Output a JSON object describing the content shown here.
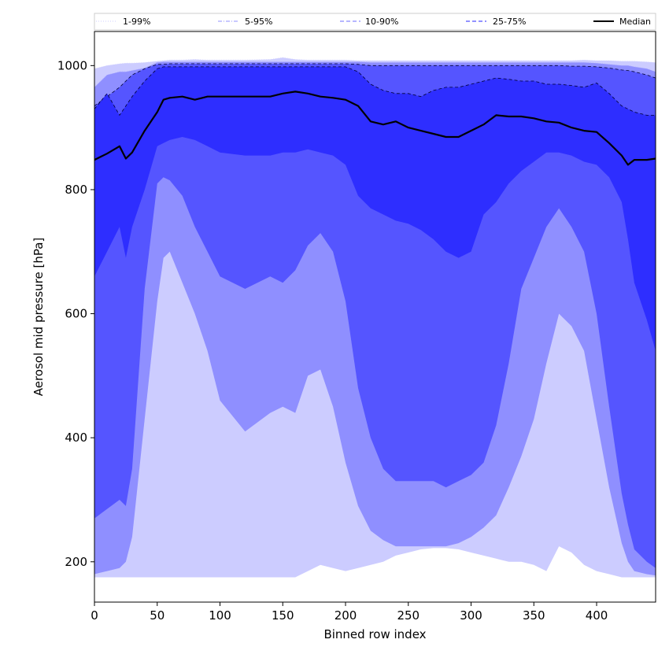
{
  "chart_data": {
    "type": "area",
    "xlabel": "Binned row index",
    "ylabel": "Aerosol mid pressure [hPa]",
    "xlim": [
      0,
      447
    ],
    "ylim": [
      135,
      1055
    ],
    "x_ticks": [
      "0",
      "50",
      "100",
      "150",
      "200",
      "250",
      "300",
      "350",
      "400"
    ],
    "y_ticks": [
      "200",
      "400",
      "600",
      "800",
      "1000"
    ],
    "grid": false,
    "legend_position": "top, horizontal",
    "legend": [
      {
        "label": "1-99%",
        "style": "dotted",
        "color": "#d6d6ff"
      },
      {
        "label": "5-95%",
        "style": "dashdot",
        "color": "#a8a8ff"
      },
      {
        "label": "10-90%",
        "style": "dashed",
        "color": "#8a8aff"
      },
      {
        "label": "25-75%",
        "style": "dashed",
        "color": "#5050ff"
      },
      {
        "label": "Median",
        "style": "solid",
        "color": "#000000"
      }
    ],
    "x": [
      0,
      10,
      20,
      25,
      30,
      40,
      50,
      55,
      60,
      70,
      80,
      90,
      100,
      120,
      140,
      150,
      160,
      170,
      180,
      190,
      200,
      210,
      220,
      230,
      240,
      250,
      260,
      270,
      280,
      290,
      300,
      310,
      320,
      330,
      340,
      350,
      360,
      370,
      380,
      390,
      400,
      410,
      420,
      425,
      430,
      440,
      447
    ],
    "bands": [
      {
        "name": "1-99%",
        "color": "#ccccff",
        "upper": [
          995,
          1000,
          1003,
          1004,
          1004,
          1005,
          1007,
          1008,
          1009,
          1009,
          1010,
          1009,
          1009,
          1009,
          1010,
          1013,
          1010,
          1009,
          1009,
          1009,
          1009,
          1008,
          1008,
          1008,
          1008,
          1008,
          1008,
          1008,
          1008,
          1008,
          1008,
          1008,
          1008,
          1008,
          1008,
          1008,
          1008,
          1008,
          1008,
          1009,
          1008,
          1008,
          1007,
          1007,
          1007,
          1006,
          1005
        ],
        "lower": [
          175,
          175,
          175,
          175,
          175,
          175,
          175,
          175,
          175,
          175,
          175,
          175,
          175,
          175,
          175,
          175,
          175,
          185,
          195,
          190,
          185,
          190,
          195,
          200,
          210,
          215,
          220,
          222,
          222,
          220,
          215,
          210,
          205,
          200,
          200,
          195,
          185,
          225,
          215,
          195,
          185,
          180,
          175,
          175,
          175,
          175,
          175
        ]
      },
      {
        "name": "5-95%",
        "color": "#8f8fff",
        "upper": [
          965,
          985,
          990,
          990,
          992,
          996,
          1005,
          1006,
          1006,
          1006,
          1006,
          1006,
          1006,
          1006,
          1006,
          1006,
          1006,
          1006,
          1006,
          1006,
          1006,
          1006,
          1005,
          1005,
          1005,
          1005,
          1005,
          1005,
          1005,
          1005,
          1005,
          1005,
          1005,
          1005,
          1005,
          1005,
          1005,
          1005,
          1005,
          1005,
          1004,
          1002,
          1000,
          1000,
          998,
          995,
          990
        ],
        "lower": [
          180,
          185,
          190,
          200,
          240,
          430,
          620,
          690,
          700,
          650,
          600,
          540,
          460,
          410,
          440,
          450,
          440,
          500,
          510,
          450,
          360,
          290,
          250,
          235,
          225,
          225,
          225,
          225,
          225,
          230,
          240,
          255,
          275,
          320,
          370,
          430,
          520,
          600,
          580,
          540,
          430,
          320,
          230,
          200,
          185,
          180,
          178
        ]
      },
      {
        "name": "10-90%",
        "color": "#5555ff",
        "upper": [
          935,
          950,
          965,
          975,
          985,
          995,
          1002,
          1002,
          1003,
          1003,
          1003,
          1003,
          1003,
          1003,
          1003,
          1003,
          1003,
          1003,
          1003,
          1003,
          1003,
          1002,
          1000,
          1000,
          1000,
          1000,
          1000,
          1000,
          1000,
          1000,
          1000,
          1000,
          1000,
          1000,
          1000,
          1000,
          1000,
          1000,
          999,
          999,
          998,
          996,
          993,
          992,
          990,
          985,
          980
        ],
        "lower": [
          270,
          285,
          300,
          290,
          350,
          640,
          810,
          820,
          815,
          790,
          740,
          700,
          660,
          640,
          660,
          650,
          670,
          710,
          730,
          700,
          620,
          480,
          400,
          350,
          330,
          330,
          330,
          330,
          320,
          330,
          340,
          360,
          420,
          520,
          640,
          690,
          740,
          770,
          740,
          700,
          600,
          450,
          310,
          260,
          220,
          200,
          190
        ]
      },
      {
        "name": "25-75%",
        "color": "#2e2eff",
        "upper": [
          930,
          955,
          920,
          935,
          950,
          975,
          995,
          998,
          998,
          998,
          998,
          998,
          998,
          998,
          998,
          998,
          998,
          998,
          998,
          998,
          998,
          990,
          970,
          960,
          955,
          955,
          950,
          960,
          965,
          965,
          970,
          975,
          980,
          978,
          975,
          975,
          970,
          970,
          968,
          965,
          972,
          955,
          935,
          930,
          925,
          920,
          920
        ],
        "lower": [
          660,
          700,
          740,
          690,
          740,
          800,
          870,
          875,
          880,
          885,
          880,
          870,
          860,
          855,
          855,
          860,
          860,
          865,
          860,
          855,
          840,
          790,
          770,
          760,
          750,
          745,
          735,
          720,
          700,
          690,
          700,
          760,
          780,
          810,
          830,
          845,
          860,
          860,
          855,
          845,
          840,
          820,
          780,
          720,
          650,
          590,
          540
        ]
      }
    ],
    "series": [
      {
        "name": "Median",
        "color": "#000000",
        "values": [
          848,
          858,
          870,
          850,
          860,
          895,
          925,
          945,
          948,
          950,
          945,
          950,
          950,
          950,
          950,
          955,
          958,
          955,
          950,
          948,
          945,
          935,
          910,
          905,
          910,
          900,
          895,
          890,
          885,
          885,
          895,
          905,
          920,
          918,
          918,
          915,
          910,
          908,
          900,
          895,
          893,
          875,
          855,
          840,
          848,
          848,
          850
        ]
      }
    ]
  }
}
